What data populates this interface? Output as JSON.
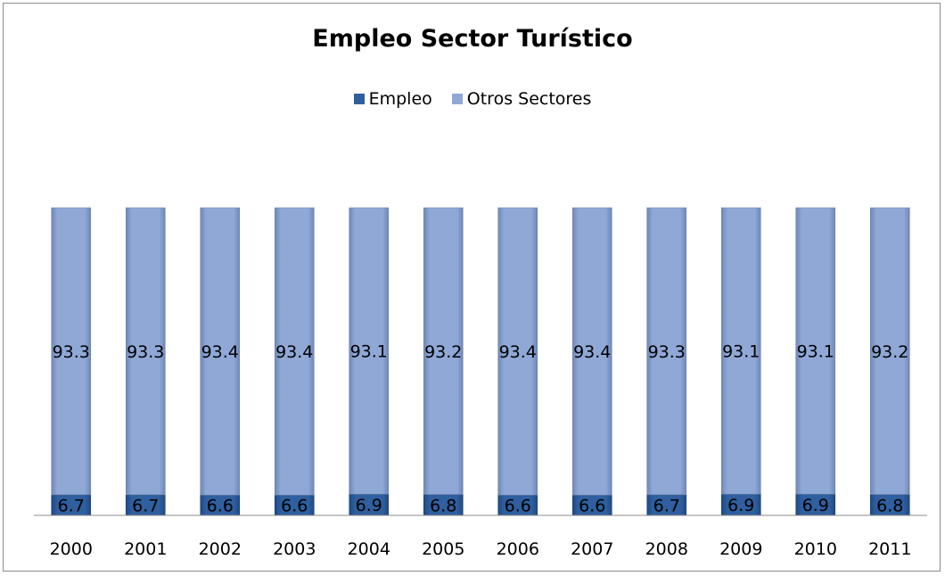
{
  "chart_data": {
    "type": "bar",
    "stacked": true,
    "title": "Empleo Sector Turístico",
    "categories": [
      "2000",
      "2001",
      "2002",
      "2003",
      "2004",
      "2005",
      "2006",
      "2007",
      "2008",
      "2009",
      "2010",
      "2011"
    ],
    "series": [
      {
        "name": "Empleo",
        "color": "#2f5f9f",
        "values": [
          6.7,
          6.7,
          6.6,
          6.6,
          6.9,
          6.8,
          6.6,
          6.6,
          6.7,
          6.9,
          6.9,
          6.8
        ]
      },
      {
        "name": "Otros Sectores",
        "color": "#8fa8d6",
        "values": [
          93.3,
          93.3,
          93.4,
          93.4,
          93.1,
          93.2,
          93.4,
          93.4,
          93.3,
          93.1,
          93.1,
          93.2
        ]
      }
    ],
    "ylim": [
      0,
      100
    ],
    "legend_position": "top",
    "grid": false,
    "data_labels": true
  }
}
